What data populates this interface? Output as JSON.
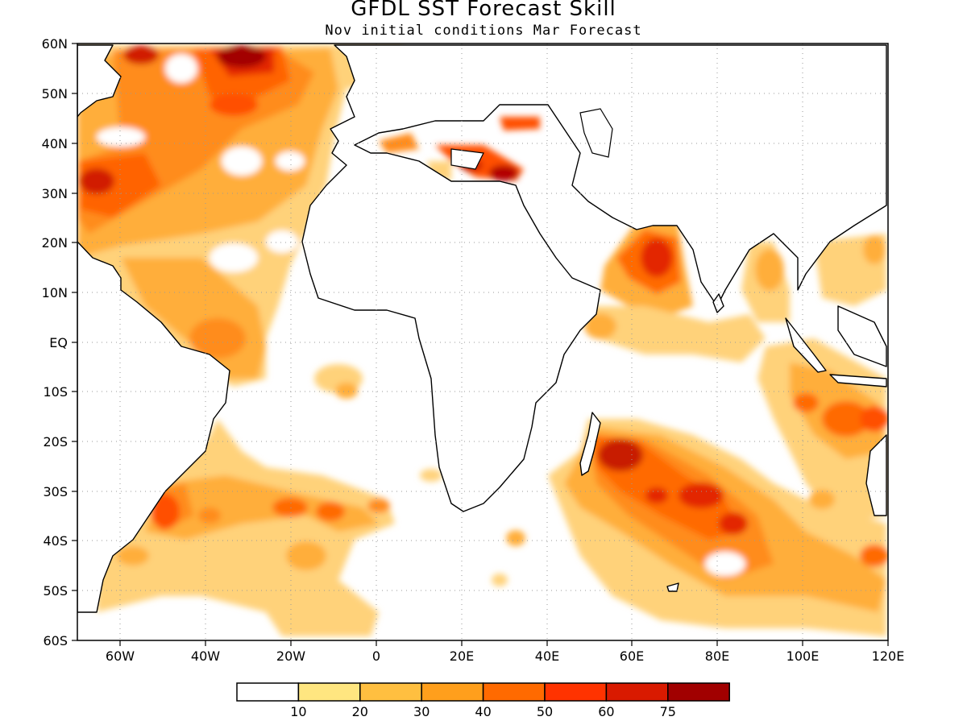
{
  "title": "GFDL SST Forecast Skill",
  "subtitle": "Nov initial conditions  Mar Forecast",
  "y_ticks": [
    "60N",
    "50N",
    "40N",
    "30N",
    "20N",
    "10N",
    "EQ",
    "10S",
    "20S",
    "30S",
    "40S",
    "50S",
    "60S"
  ],
  "x_ticks": [
    "60W",
    "40W",
    "20W",
    "0",
    "20E",
    "40E",
    "60E",
    "80E",
    "100E",
    "120E"
  ],
  "colorbar": {
    "labels": [
      "10",
      "20",
      "30",
      "40",
      "50",
      "60",
      "75"
    ],
    "colors": [
      "#ffffff",
      "#ffe680",
      "#ffbf40",
      "#ff9f1c",
      "#ff6a00",
      "#ff3300",
      "#d91a00",
      "#a10000"
    ]
  },
  "colors": {
    "land": "#ffffff",
    "coast": "#000000",
    "grid": "#9a9a9a"
  }
}
